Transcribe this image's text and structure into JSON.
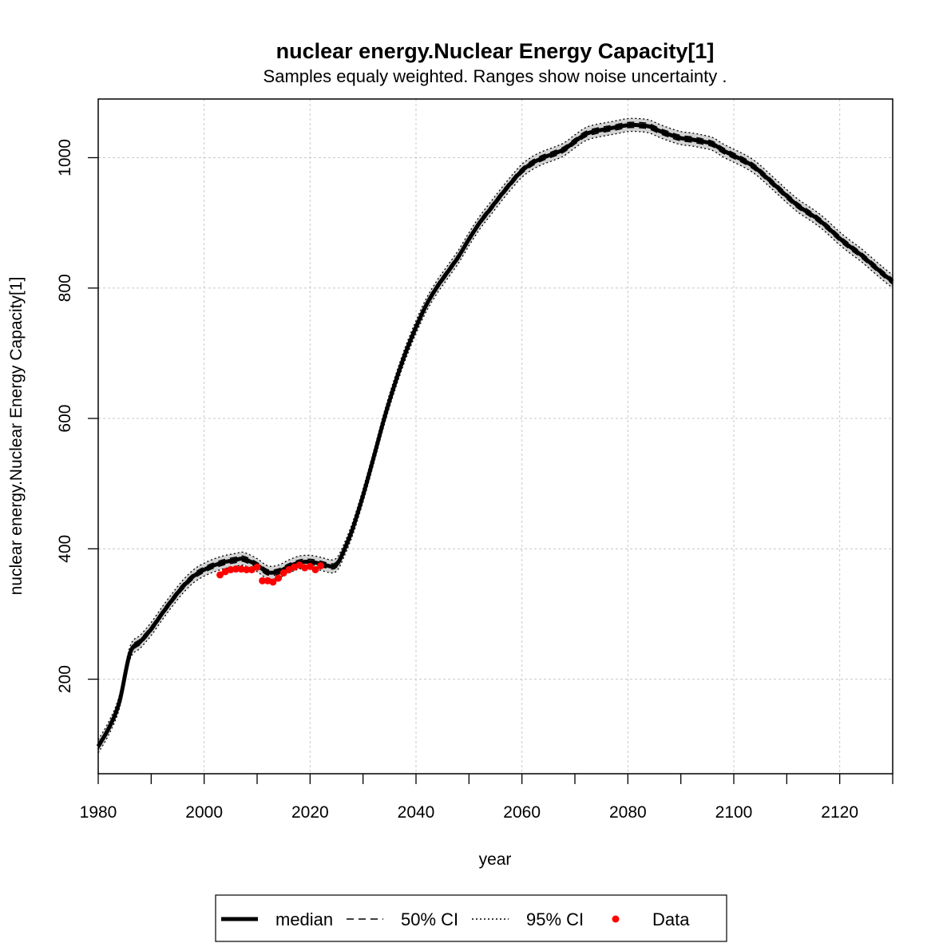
{
  "chart_data": {
    "type": "line",
    "title": "nuclear energy.Nuclear Energy Capacity[1]",
    "subtitle": "Samples equaly weighted. Ranges show  noise uncertainty .",
    "xlabel": "year",
    "ylabel": "nuclear energy.Nuclear Energy Capacity[1]",
    "xlim": [
      1980,
      2130
    ],
    "ylim": [
      55,
      1090
    ],
    "x_ticks": [
      1980,
      2000,
      2020,
      2040,
      2060,
      2080,
      2100,
      2120
    ],
    "y_ticks": [
      200,
      400,
      600,
      800,
      1000
    ],
    "grid": true,
    "legend_position": "bottom",
    "legend": [
      {
        "label": "median",
        "style": "solid-thick"
      },
      {
        "label": "50% CI",
        "style": "dashed"
      },
      {
        "label": "95% CI",
        "style": "dotted"
      },
      {
        "label": "Data",
        "style": "point",
        "color": "#ff0000"
      }
    ],
    "median": {
      "x": [
        1980,
        1982,
        1984,
        1986,
        1988,
        1990,
        1992,
        1994,
        1996,
        1998,
        2000,
        2002,
        2004,
        2006,
        2007,
        2008,
        2010,
        2012,
        2014,
        2016,
        2018,
        2020,
        2022,
        2024,
        2025,
        2026,
        2028,
        2030,
        2032,
        2034,
        2036,
        2038,
        2040,
        2042,
        2044,
        2046,
        2048,
        2050,
        2052,
        2054,
        2056,
        2058,
        2060,
        2062,
        2064,
        2066,
        2068,
        2070,
        2072,
        2074,
        2076,
        2078,
        2080,
        2082,
        2084,
        2086,
        2088,
        2090,
        2092,
        2094,
        2096,
        2098,
        2100,
        2102,
        2104,
        2106,
        2108,
        2110,
        2112,
        2114,
        2116,
        2118,
        2120,
        2122,
        2124,
        2126,
        2128,
        2130
      ],
      "y": [
        97,
        125,
        165,
        240,
        258,
        277,
        300,
        322,
        342,
        358,
        368,
        375,
        380,
        383,
        385,
        383,
        375,
        364,
        365,
        373,
        379,
        380,
        377,
        373,
        376,
        390,
        430,
        482,
        540,
        600,
        653,
        700,
        740,
        775,
        802,
        825,
        848,
        875,
        900,
        921,
        942,
        962,
        980,
        992,
        1000,
        1006,
        1013,
        1025,
        1036,
        1041,
        1044,
        1047,
        1050,
        1050,
        1048,
        1041,
        1035,
        1030,
        1028,
        1025,
        1021,
        1011,
        1003,
        995,
        985,
        971,
        956,
        941,
        927,
        916,
        905,
        891,
        876,
        863,
        851,
        837,
        823,
        810
      ]
    },
    "ci50_halfwidth": 4,
    "ci95_halfwidth": 10,
    "data_points": {
      "x": [
        2003,
        2004,
        2005,
        2006,
        2007,
        2008,
        2009,
        2010,
        2011,
        2012,
        2013,
        2014,
        2015,
        2016,
        2017,
        2018,
        2019,
        2020,
        2021,
        2022
      ],
      "y": [
        360,
        365,
        368,
        369,
        369,
        368,
        368,
        372,
        351,
        351,
        349,
        355,
        363,
        368,
        372,
        375,
        371,
        373,
        368,
        374
      ]
    },
    "colors": {
      "median": "#000000",
      "ci_fill": "#d3d3d3",
      "data": "#ff0000"
    }
  }
}
